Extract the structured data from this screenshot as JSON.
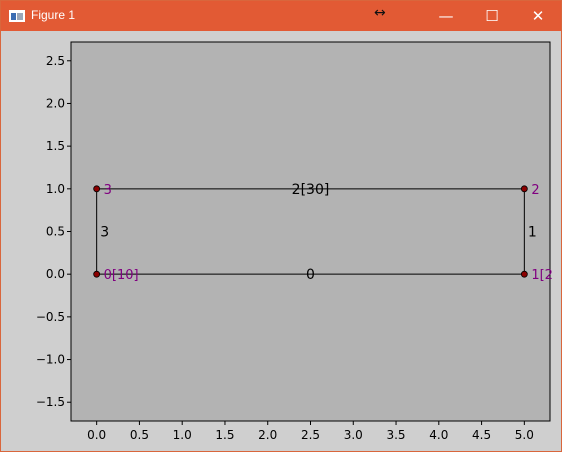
{
  "window": {
    "title": "Figure 1",
    "resize_glyph": "↔",
    "minimize_glyph": "—",
    "maximize_glyph": "☐",
    "close_glyph": "✕",
    "titlebar_color": "#e25a34"
  },
  "chart_data": {
    "type": "scatter",
    "xlim": [
      -0.3,
      5.3
    ],
    "ylim": [
      -1.72,
      2.72
    ],
    "xticks": [
      0.0,
      0.5,
      1.0,
      1.5,
      2.0,
      2.5,
      3.0,
      3.5,
      4.0,
      4.5,
      5.0
    ],
    "yticks": [
      -1.5,
      -1.0,
      -0.5,
      0.0,
      0.5,
      1.0,
      1.5,
      2.0,
      2.5
    ],
    "xtick_labels": [
      "0.0",
      "0.5",
      "1.0",
      "1.5",
      "2.0",
      "2.5",
      "3.0",
      "3.5",
      "4.0",
      "4.5",
      "5.0"
    ],
    "ytick_labels": [
      "−1.5",
      "−1.0",
      "−0.5",
      "0.0",
      "0.5",
      "1.0",
      "1.5",
      "2.0",
      "2.5"
    ],
    "grid": false,
    "background": "#b3b3b3",
    "node_color": "#8b0000",
    "node_label_color": "#800080",
    "nodes": [
      {
        "x": 0,
        "y": 0,
        "label": "0[10]"
      },
      {
        "x": 5,
        "y": 0,
        "label": "1[2"
      },
      {
        "x": 5,
        "y": 1,
        "label": "2"
      },
      {
        "x": 0,
        "y": 1,
        "label": "3"
      }
    ],
    "edges": [
      {
        "from": 0,
        "to": 1,
        "label": "0"
      },
      {
        "from": 1,
        "to": 2,
        "label": "1"
      },
      {
        "from": 2,
        "to": 3,
        "label": "2[30]"
      },
      {
        "from": 3,
        "to": 0,
        "label": "3"
      }
    ]
  }
}
